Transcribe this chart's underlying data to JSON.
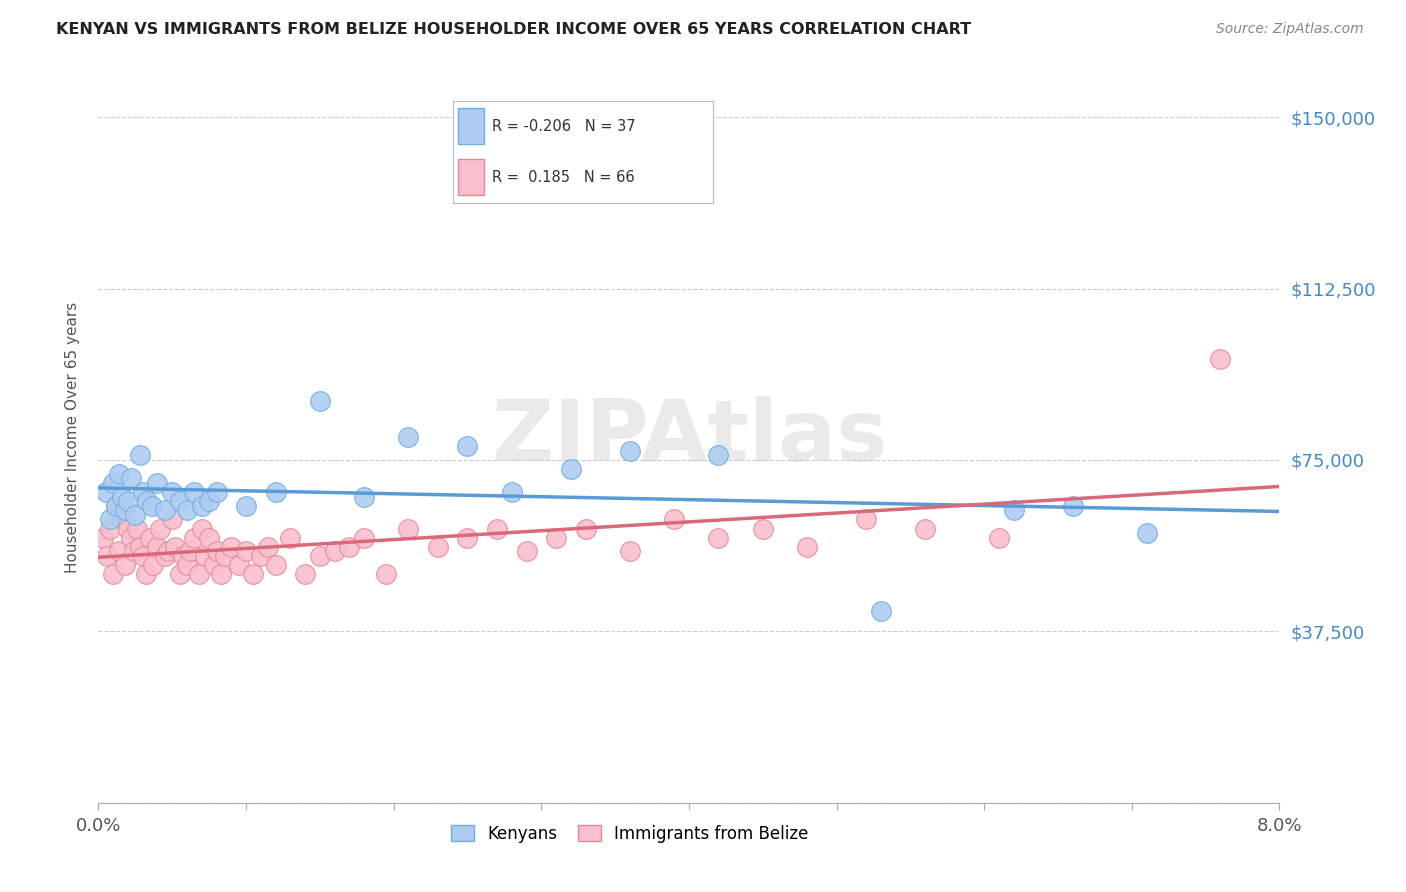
{
  "title": "KENYAN VS IMMIGRANTS FROM BELIZE HOUSEHOLDER INCOME OVER 65 YEARS CORRELATION CHART",
  "source": "Source: ZipAtlas.com",
  "ylabel": "Householder Income Over 65 years",
  "xlim": [
    0.0,
    8.0
  ],
  "ylim": [
    0,
    160000
  ],
  "ytick_vals": [
    0,
    37500,
    75000,
    112500,
    150000
  ],
  "ytick_labels": [
    "",
    "$37,500",
    "$75,000",
    "$112,500",
    "$150,000"
  ],
  "xtick_vals": [
    0.0,
    1.0,
    2.0,
    3.0,
    4.0,
    5.0,
    6.0,
    7.0,
    8.0
  ],
  "legend_r_kenyan": "-0.206",
  "legend_n_kenyan": "37",
  "legend_r_belize": "0.185",
  "legend_n_belize": "66",
  "kenyan_fill": "#aeccf0",
  "belize_fill": "#f9bfcc",
  "kenyan_edge": "#6aaee8",
  "belize_edge": "#e8879a",
  "kenyan_line": "#5b9bd5",
  "belize_line": "#d9687a",
  "kenyan_x": [
    0.05,
    0.08,
    0.1,
    0.12,
    0.14,
    0.16,
    0.18,
    0.2,
    0.22,
    0.25,
    0.28,
    0.3,
    0.33,
    0.36,
    0.4,
    0.45,
    0.5,
    0.55,
    0.6,
    0.65,
    0.7,
    0.75,
    0.8,
    1.0,
    1.2,
    1.5,
    1.8,
    2.1,
    2.5,
    2.8,
    3.2,
    3.6,
    4.2,
    5.3,
    6.2,
    6.6,
    7.1
  ],
  "kenyan_y": [
    68000,
    62000,
    70000,
    65000,
    72000,
    67000,
    64000,
    66000,
    71000,
    63000,
    76000,
    68000,
    66000,
    65000,
    70000,
    64000,
    68000,
    66000,
    64000,
    68000,
    65000,
    66000,
    68000,
    65000,
    68000,
    88000,
    67000,
    80000,
    78000,
    68000,
    73000,
    77000,
    76000,
    42000,
    64000,
    65000,
    59000
  ],
  "belize_x": [
    0.03,
    0.06,
    0.08,
    0.1,
    0.12,
    0.14,
    0.16,
    0.18,
    0.2,
    0.22,
    0.24,
    0.26,
    0.28,
    0.3,
    0.32,
    0.35,
    0.37,
    0.4,
    0.42,
    0.45,
    0.47,
    0.5,
    0.52,
    0.55,
    0.57,
    0.6,
    0.62,
    0.65,
    0.68,
    0.7,
    0.72,
    0.75,
    0.78,
    0.8,
    0.83,
    0.86,
    0.9,
    0.95,
    1.0,
    1.05,
    1.1,
    1.15,
    1.2,
    1.3,
    1.4,
    1.5,
    1.6,
    1.7,
    1.8,
    1.95,
    2.1,
    2.3,
    2.5,
    2.7,
    2.9,
    3.1,
    3.3,
    3.6,
    3.9,
    4.2,
    4.5,
    4.8,
    5.2,
    5.6,
    6.1,
    7.6
  ],
  "belize_y": [
    58000,
    54000,
    60000,
    50000,
    65000,
    55000,
    62000,
    52000,
    60000,
    58000,
    55000,
    60000,
    56000,
    54000,
    50000,
    58000,
    52000,
    56000,
    60000,
    54000,
    55000,
    62000,
    56000,
    50000,
    54000,
    52000,
    55000,
    58000,
    50000,
    60000,
    54000,
    58000,
    52000,
    55000,
    50000,
    54000,
    56000,
    52000,
    55000,
    50000,
    54000,
    56000,
    52000,
    58000,
    50000,
    54000,
    55000,
    56000,
    58000,
    50000,
    60000,
    56000,
    58000,
    60000,
    55000,
    58000,
    60000,
    55000,
    62000,
    58000,
    60000,
    56000,
    62000,
    60000,
    58000,
    97000
  ]
}
